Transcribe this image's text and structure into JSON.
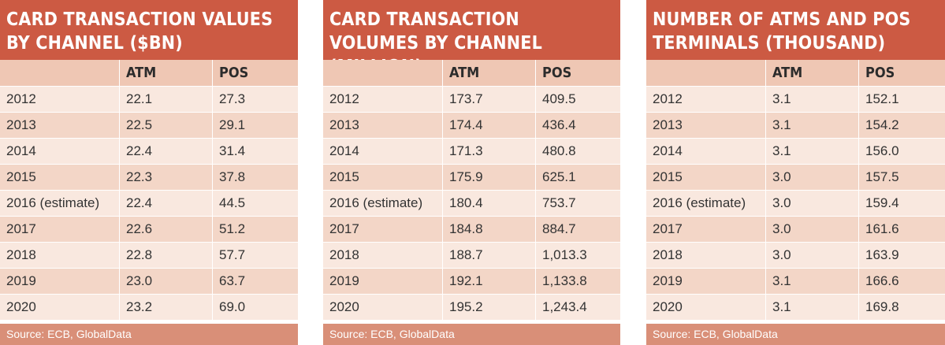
{
  "panels": [
    {
      "title": "CARD TRANSACTION VALUES BY CHANNEL ($BN)",
      "columns": [
        "",
        "ATM",
        "POS"
      ],
      "rows": [
        [
          "2012",
          "22.1",
          "27.3"
        ],
        [
          "2013",
          "22.5",
          "29.1"
        ],
        [
          "2014",
          "22.4",
          "31.4"
        ],
        [
          "2015",
          "22.3",
          "37.8"
        ],
        [
          "2016 (estimate)",
          "22.4",
          "44.5"
        ],
        [
          "2017",
          "22.6",
          "51.2"
        ],
        [
          "2018",
          "22.8",
          "57.7"
        ],
        [
          "2019",
          "23.0",
          "63.7"
        ],
        [
          "2020",
          "23.2",
          "69.0"
        ]
      ],
      "source": "Source: ECB, GlobalData"
    },
    {
      "title": "CARD TRANSACTION VOLUMES BY CHANNEL (MILLION)",
      "columns": [
        "",
        "ATM",
        "POS"
      ],
      "rows": [
        [
          "2012",
          "173.7",
          "409.5"
        ],
        [
          "2013",
          "174.4",
          "436.4"
        ],
        [
          "2014",
          "171.3",
          "480.8"
        ],
        [
          "2015",
          "175.9",
          "625.1"
        ],
        [
          "2016 (estimate)",
          "180.4",
          "753.7"
        ],
        [
          "2017",
          "184.8",
          "884.7"
        ],
        [
          "2018",
          "188.7",
          "1,013.3"
        ],
        [
          "2019",
          "192.1",
          "1,133.8"
        ],
        [
          "2020",
          "195.2",
          "1,243.4"
        ]
      ],
      "source": "Source: ECB, GlobalData"
    },
    {
      "title": "NUMBER OF ATMS AND POS TERMINALS (THOUSAND)",
      "columns": [
        "",
        "ATM",
        "POS"
      ],
      "rows": [
        [
          "2012",
          "3.1",
          "152.1"
        ],
        [
          "2013",
          "3.1",
          "154.2"
        ],
        [
          "2014",
          "3.1",
          "156.0"
        ],
        [
          "2015",
          "3.0",
          "157.5"
        ],
        [
          "2016 (estimate)",
          "3.0",
          "159.4"
        ],
        [
          "2017",
          "3.0",
          "161.6"
        ],
        [
          "2018",
          "3.0",
          "163.9"
        ],
        [
          "2019",
          "3.1",
          "166.6"
        ],
        [
          "2020",
          "3.1",
          "169.8"
        ]
      ],
      "source": "Source: ECB, GlobalData"
    }
  ],
  "colors": {
    "title_bg": "#cc5a43",
    "header_bg": "#efc7b4",
    "row_light": "#f9e8df",
    "row_dark": "#f3d6c7",
    "source_bg": "#d98f78"
  }
}
